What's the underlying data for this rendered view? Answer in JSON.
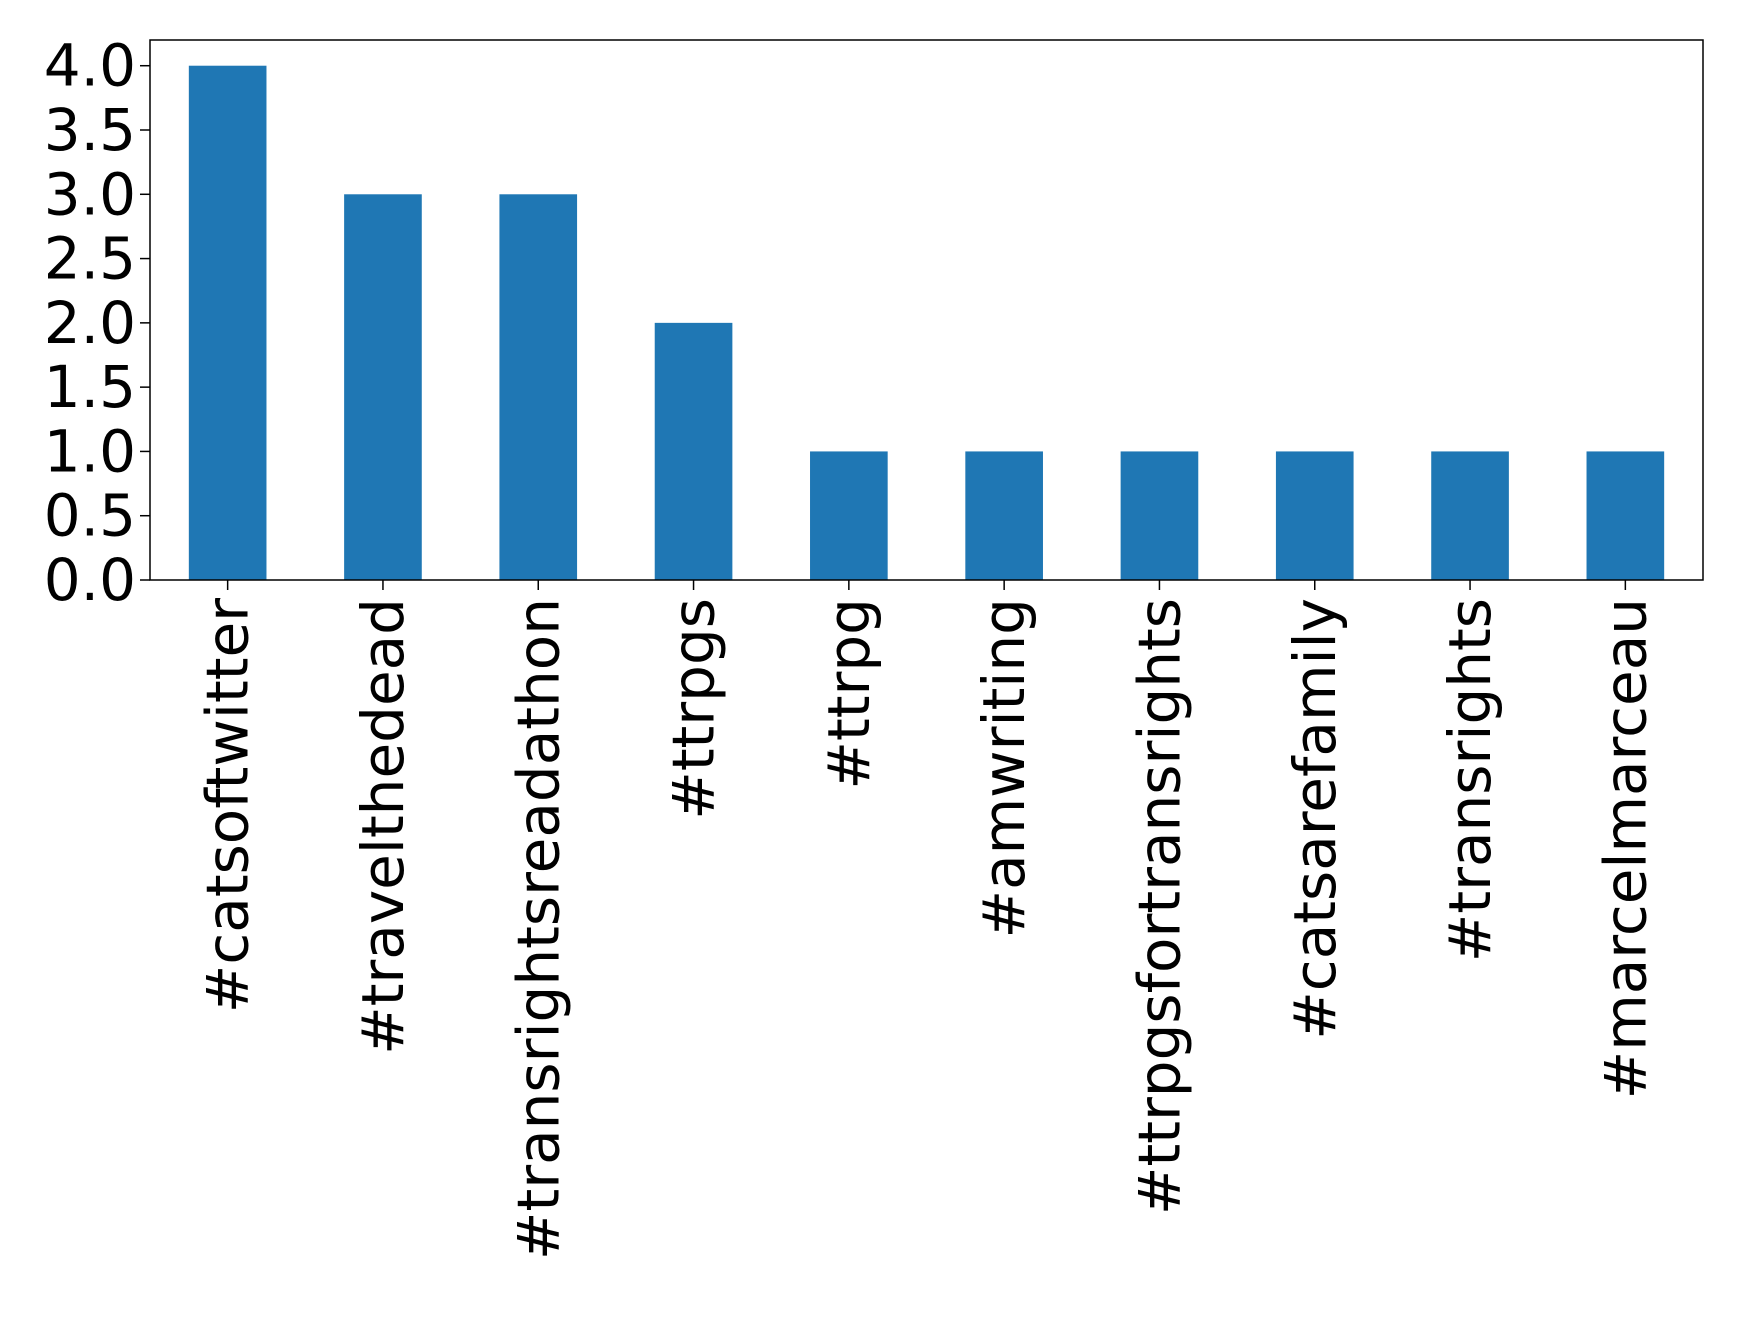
{
  "chart_data": {
    "type": "bar",
    "title": "",
    "xlabel": "",
    "ylabel": "",
    "categories": [
      "#catsoftwitter",
      "#travelthedead",
      "#transrightsreadathon",
      "#ttrpgs",
      "#ttrpg",
      "#amwriting",
      "#ttrpgsfortransrights",
      "#catsarefamily",
      "#transrights",
      "#marcelmarceau"
    ],
    "values": [
      4,
      3,
      3,
      2,
      1,
      1,
      1,
      1,
      1,
      1
    ],
    "ylim": [
      0,
      4.2
    ],
    "yticks": [
      0.0,
      0.5,
      1.0,
      1.5,
      2.0,
      2.5,
      3.0,
      3.5,
      4.0
    ],
    "ytick_labels": [
      "0.0",
      "0.5",
      "1.0",
      "1.5",
      "2.0",
      "2.5",
      "3.0",
      "3.5",
      "4.0"
    ],
    "bar_color": "#1f77b4",
    "grid": false,
    "legend": false
  }
}
